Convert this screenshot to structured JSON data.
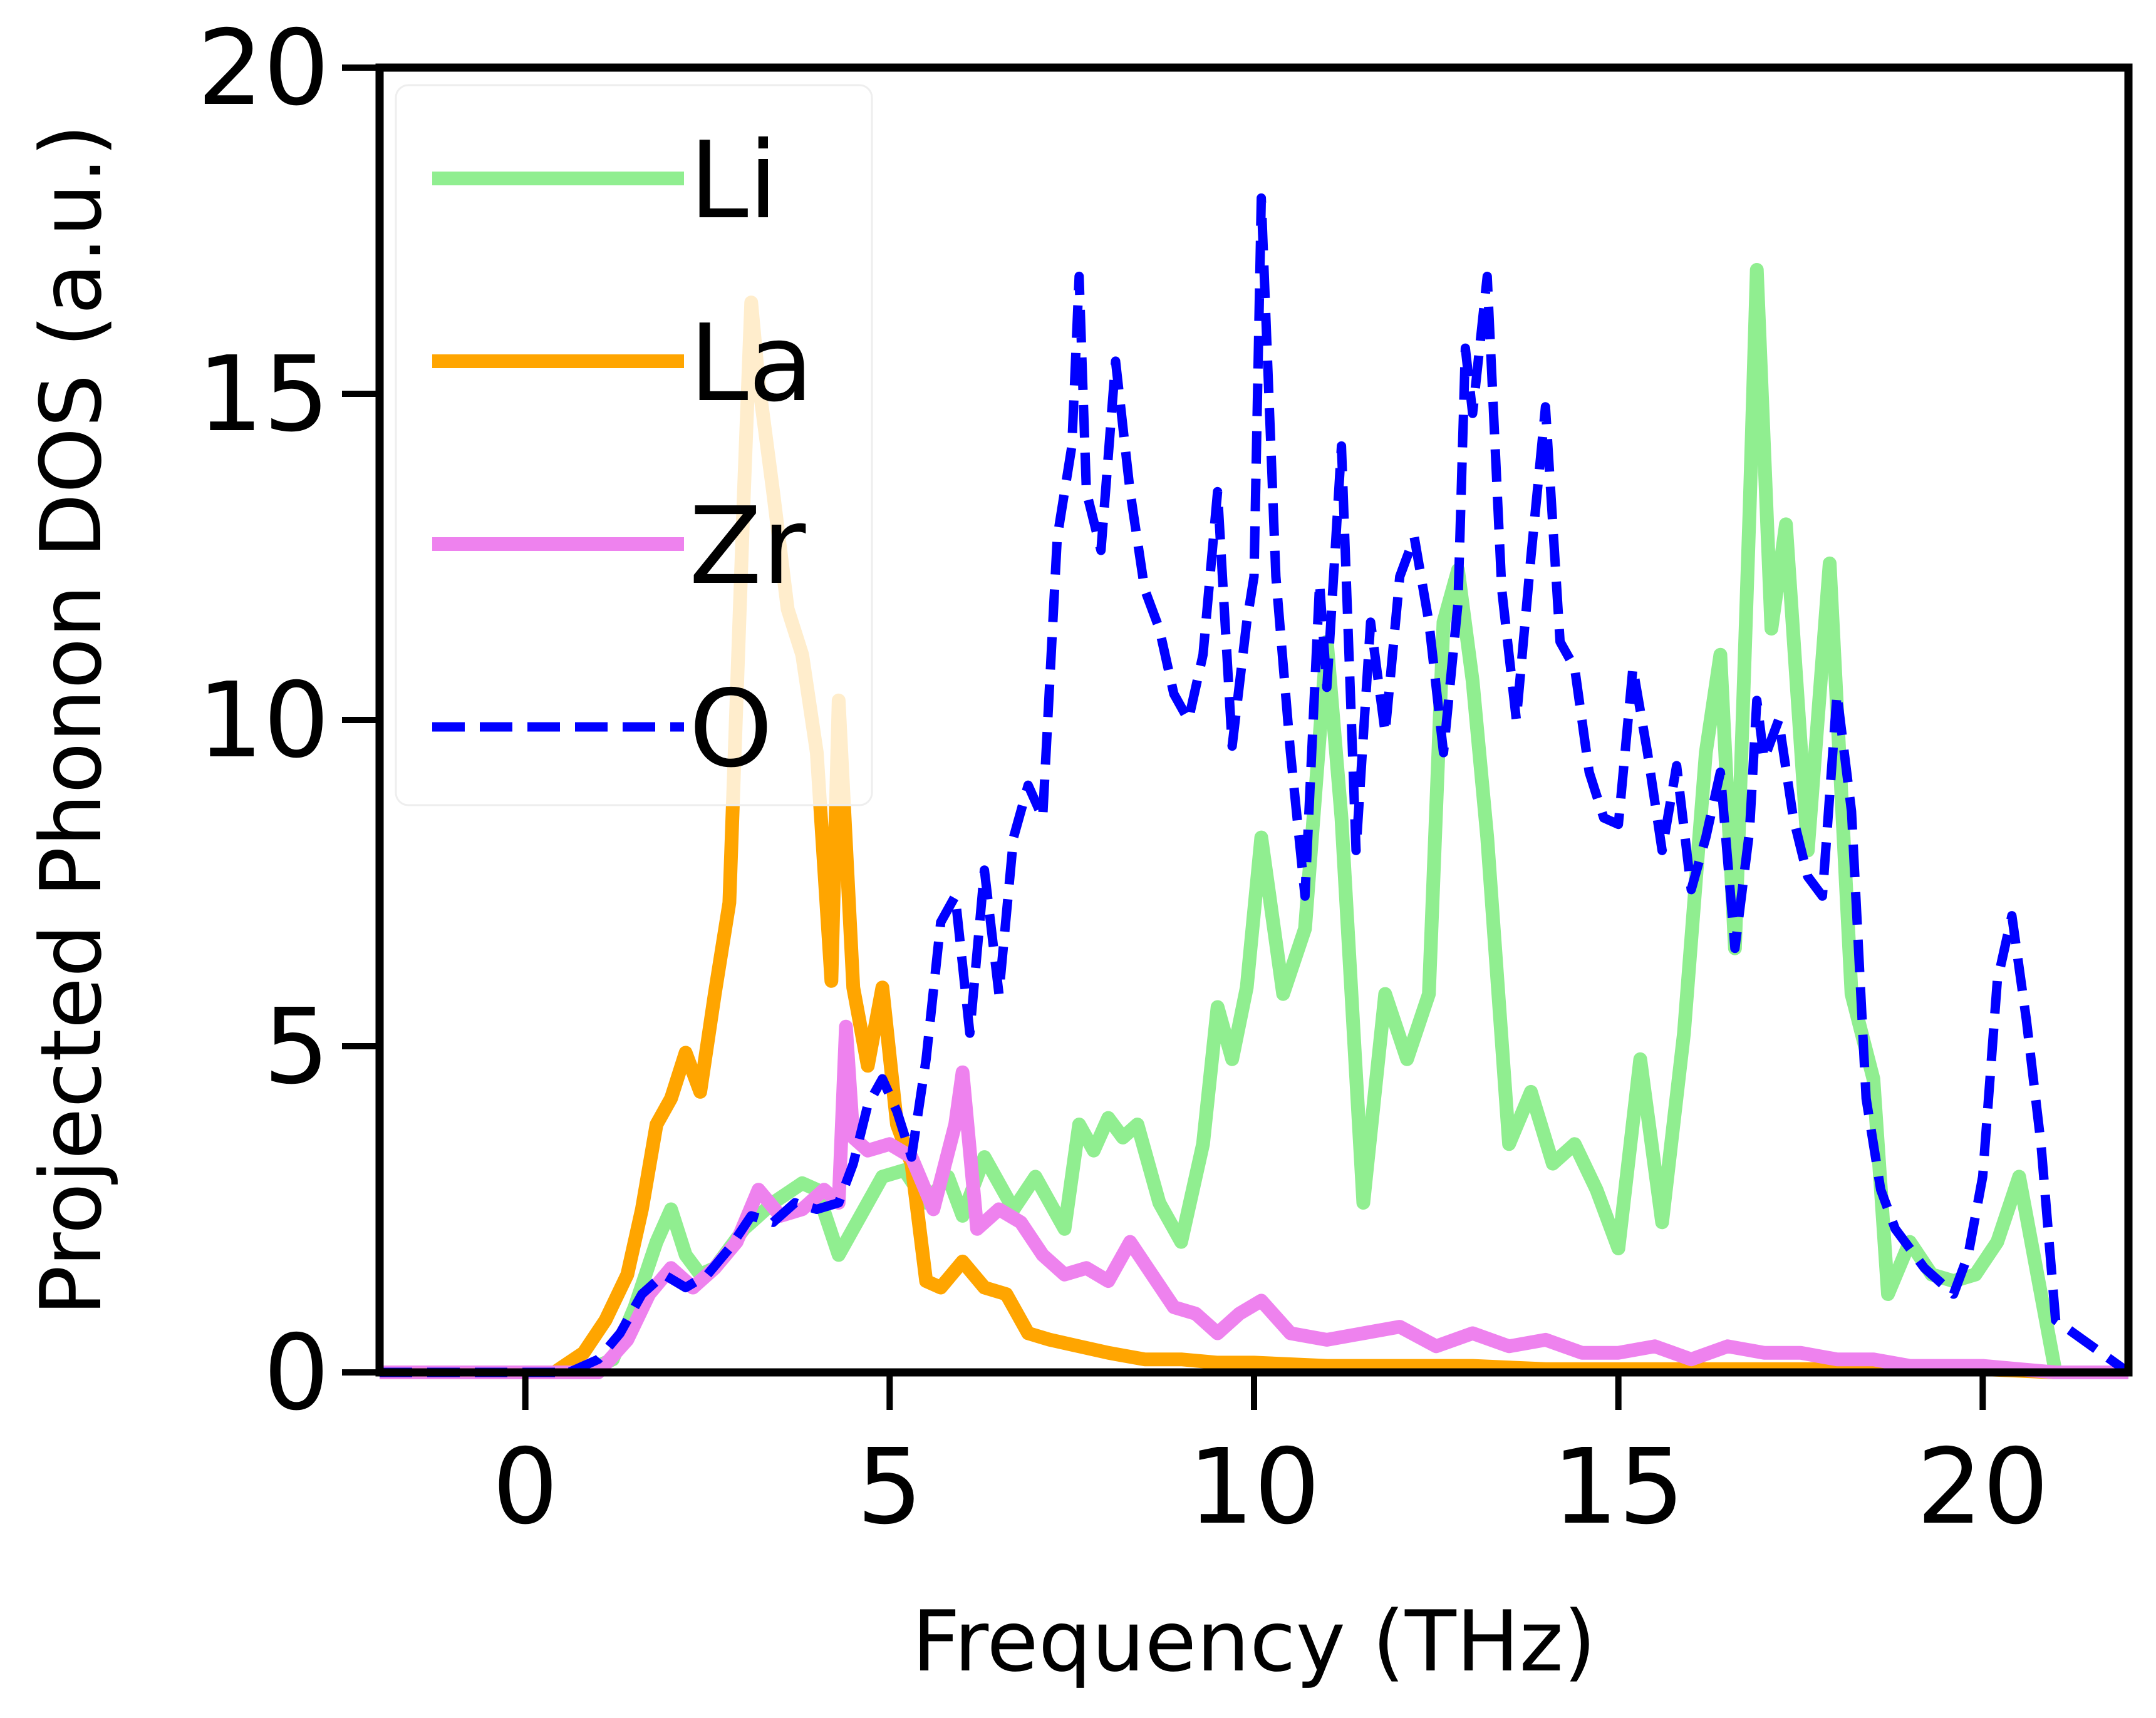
{
  "chart_data": {
    "type": "line",
    "xlabel": "Frequency (THz)",
    "ylabel": "Projected Phonon DOS (a.u.)",
    "xlim": [
      -2,
      22
    ],
    "ylim": [
      0,
      20
    ],
    "xticks": [
      0,
      5,
      10,
      15,
      20
    ],
    "yticks": [
      0,
      5,
      10,
      15,
      20
    ],
    "grid": false,
    "legend_position": "top-left",
    "series": [
      {
        "name": "Li",
        "color": "#90ee90",
        "style": "solid",
        "x": [
          -2,
          0.8,
          1.2,
          1.5,
          1.8,
          2.0,
          2.2,
          2.4,
          2.6,
          3.0,
          3.4,
          3.8,
          4.0,
          4.3,
          4.6,
          4.9,
          5.2,
          5.5,
          5.8,
          6.0,
          6.3,
          6.7,
          7.0,
          7.4,
          7.6,
          7.8,
          8.0,
          8.2,
          8.4,
          8.7,
          9.0,
          9.3,
          9.5,
          9.7,
          9.9,
          10.1,
          10.4,
          10.7,
          11.0,
          11.2,
          11.5,
          11.8,
          12.1,
          12.4,
          12.6,
          12.8,
          13.0,
          13.2,
          13.5,
          13.8,
          14.1,
          14.4,
          14.7,
          15.0,
          15.3,
          15.6,
          15.9,
          16.2,
          16.4,
          16.6,
          16.8,
          16.9,
          17.1,
          17.3,
          17.6,
          17.9,
          18.2,
          18.5,
          18.7,
          19.0,
          19.3,
          19.6,
          19.9,
          20.2,
          20.5,
          20.8,
          21.0,
          22
        ],
        "y": [
          0,
          0,
          0.2,
          1.0,
          2.0,
          2.5,
          1.8,
          1.5,
          1.6,
          2.2,
          2.6,
          2.9,
          2.8,
          1.8,
          2.4,
          3.0,
          3.1,
          2.6,
          3.0,
          2.4,
          3.3,
          2.5,
          3.0,
          2.2,
          3.8,
          3.4,
          3.9,
          3.6,
          3.8,
          2.6,
          2.0,
          3.5,
          5.6,
          4.8,
          5.9,
          8.2,
          5.8,
          6.8,
          11.2,
          8.5,
          2.6,
          5.8,
          4.8,
          5.8,
          11.5,
          12.3,
          10.6,
          8.2,
          3.5,
          4.3,
          3.2,
          3.5,
          2.8,
          1.9,
          4.8,
          2.3,
          5.2,
          9.5,
          11.0,
          6.5,
          13.2,
          16.9,
          11.4,
          13.0,
          8.0,
          12.4,
          5.8,
          4.5,
          1.2,
          2.0,
          1.5,
          1.4,
          1.5,
          2.0,
          3.0,
          1.2,
          0,
          0
        ]
      },
      {
        "name": "La",
        "color": "#ffa500",
        "style": "solid",
        "x": [
          -2,
          0.4,
          0.8,
          1.1,
          1.4,
          1.6,
          1.8,
          2.0,
          2.2,
          2.4,
          2.6,
          2.8,
          3.0,
          3.1,
          3.2,
          3.4,
          3.6,
          3.8,
          4.0,
          4.2,
          4.3,
          4.5,
          4.7,
          4.9,
          5.1,
          5.3,
          5.5,
          5.7,
          6.0,
          6.3,
          6.6,
          6.9,
          7.2,
          7.6,
          8.0,
          8.5,
          9.0,
          9.5,
          10.0,
          11.0,
          12.0,
          13.0,
          14.0,
          15.0,
          16.0,
          17.0,
          18.0,
          19.0,
          20.0,
          21.0,
          22
        ],
        "y": [
          0,
          0,
          0.3,
          0.8,
          1.5,
          2.5,
          3.8,
          4.2,
          4.9,
          4.3,
          5.8,
          7.2,
          13.5,
          16.4,
          15.2,
          13.5,
          11.7,
          11.0,
          9.5,
          6.0,
          10.3,
          5.9,
          4.7,
          5.9,
          3.8,
          3.2,
          1.4,
          1.3,
          1.7,
          1.3,
          1.2,
          0.6,
          0.5,
          0.4,
          0.3,
          0.2,
          0.2,
          0.15,
          0.15,
          0.1,
          0.1,
          0.1,
          0.05,
          0.05,
          0.05,
          0.05,
          0.05,
          0.05,
          0.05,
          0,
          0
        ]
      },
      {
        "name": "Zr",
        "color": "#ee82ee",
        "style": "solid",
        "x": [
          -2,
          1.0,
          1.4,
          1.7,
          2.0,
          2.3,
          2.6,
          2.9,
          3.2,
          3.5,
          3.8,
          4.1,
          4.3,
          4.4,
          4.5,
          4.7,
          5.0,
          5.3,
          5.6,
          5.9,
          6.0,
          6.2,
          6.5,
          6.8,
          7.1,
          7.4,
          7.7,
          8.0,
          8.3,
          8.6,
          8.9,
          9.2,
          9.5,
          9.8,
          10.1,
          10.5,
          11.0,
          11.5,
          12.0,
          12.5,
          13.0,
          13.5,
          14.0,
          14.5,
          15.0,
          15.5,
          16.0,
          16.5,
          17.0,
          17.5,
          18.0,
          18.5,
          19.0,
          19.5,
          20.0,
          20.5,
          21.0,
          22
        ],
        "y": [
          0,
          0,
          0.5,
          1.2,
          1.6,
          1.3,
          1.6,
          2.0,
          2.8,
          2.4,
          2.5,
          2.8,
          2.6,
          5.3,
          3.6,
          3.4,
          3.5,
          3.3,
          2.5,
          3.8,
          4.6,
          2.2,
          2.5,
          2.3,
          1.8,
          1.5,
          1.6,
          1.4,
          2.0,
          1.5,
          1.0,
          0.9,
          0.6,
          0.9,
          1.1,
          0.6,
          0.5,
          0.6,
          0.7,
          0.4,
          0.6,
          0.4,
          0.5,
          0.3,
          0.3,
          0.4,
          0.2,
          0.4,
          0.3,
          0.3,
          0.2,
          0.2,
          0.1,
          0.1,
          0.1,
          0.05,
          0,
          0
        ]
      },
      {
        "name": "O",
        "color": "#0000ff",
        "style": "dashed",
        "x": [
          -2,
          0.6,
          1.0,
          1.3,
          1.6,
          1.9,
          2.2,
          2.5,
          2.8,
          3.1,
          3.4,
          3.7,
          4.0,
          4.3,
          4.5,
          4.7,
          4.9,
          5.1,
          5.3,
          5.5,
          5.7,
          5.9,
          6.1,
          6.3,
          6.5,
          6.7,
          6.9,
          7.1,
          7.3,
          7.5,
          7.6,
          7.7,
          7.9,
          8.1,
          8.3,
          8.5,
          8.7,
          8.9,
          9.1,
          9.3,
          9.5,
          9.7,
          9.9,
          10.0,
          10.1,
          10.3,
          10.5,
          10.7,
          10.9,
          11.0,
          11.2,
          11.4,
          11.6,
          11.8,
          12.0,
          12.2,
          12.4,
          12.6,
          12.8,
          12.9,
          13.0,
          13.2,
          13.4,
          13.6,
          13.8,
          14.0,
          14.2,
          14.4,
          14.6,
          14.8,
          15.0,
          15.2,
          15.4,
          15.6,
          15.8,
          16.0,
          16.2,
          16.4,
          16.6,
          16.8,
          16.9,
          17.0,
          17.2,
          17.4,
          17.6,
          17.8,
          18.0,
          18.2,
          18.4,
          18.6,
          18.8,
          19.0,
          19.2,
          19.4,
          19.6,
          19.8,
          20.0,
          20.2,
          20.4,
          20.6,
          20.8,
          21.0,
          22
        ],
        "y": [
          0,
          0,
          0.2,
          0.6,
          1.2,
          1.5,
          1.3,
          1.5,
          1.9,
          2.4,
          2.3,
          2.6,
          2.5,
          2.6,
          3.2,
          4.1,
          4.5,
          4.0,
          3.3,
          4.8,
          6.9,
          7.3,
          5.2,
          7.7,
          5.8,
          8.2,
          9.0,
          8.5,
          12.8,
          14.2,
          16.8,
          13.5,
          12.6,
          15.5,
          13.5,
          12.0,
          11.4,
          10.4,
          10.0,
          11.0,
          13.5,
          9.6,
          11.5,
          12.2,
          18.0,
          12.2,
          9.5,
          7.3,
          12.1,
          10.5,
          14.2,
          8.0,
          11.5,
          9.8,
          12.2,
          12.8,
          11.5,
          9.5,
          11.8,
          15.7,
          14.7,
          16.8,
          12.0,
          10.0,
          12.5,
          14.8,
          11.2,
          10.8,
          9.2,
          8.5,
          8.4,
          10.8,
          9.5,
          8.0,
          9.3,
          7.4,
          8.2,
          9.2,
          6.5,
          8.3,
          10.3,
          9.4,
          10.0,
          8.5,
          7.6,
          7.3,
          10.4,
          8.6,
          4.2,
          2.8,
          2.2,
          1.9,
          1.6,
          1.4,
          1.2,
          1.8,
          3.0,
          6.0,
          7.0,
          5.4,
          3.5,
          0.8,
          0
        ]
      }
    ]
  }
}
